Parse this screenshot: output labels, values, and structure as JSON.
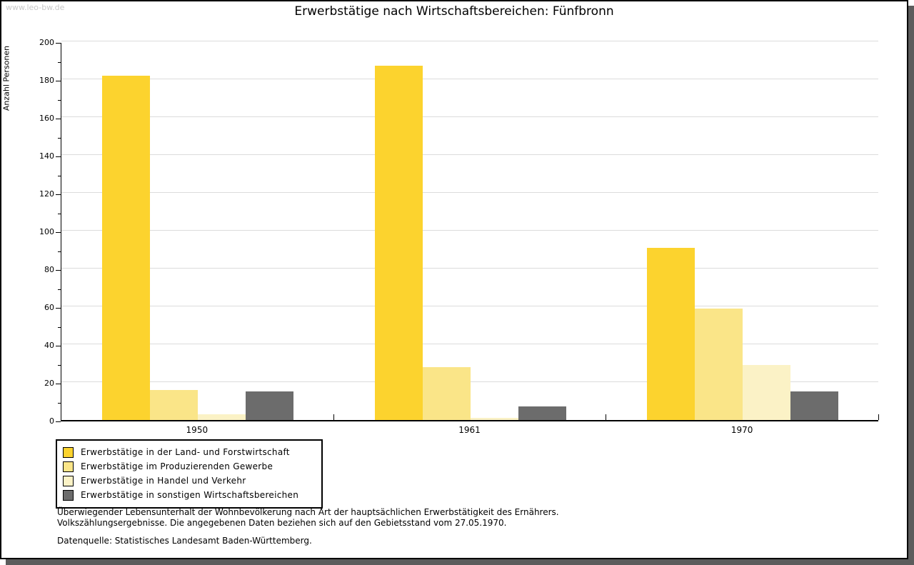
{
  "page": {
    "watermark": "www.leo-bw.de"
  },
  "chart_data": {
    "type": "bar",
    "title": "Erwerbstätige nach Wirtschaftsbereichen: Fünfbronn",
    "xlabel": "",
    "ylabel": "Anzahl Personen",
    "categories": [
      "1950",
      "1961",
      "1970"
    ],
    "series": [
      {
        "name": "Erwerbstätige in der Land- und Forstwirtschaft",
        "color": "#FCD32E",
        "values": [
          182,
          187,
          91
        ]
      },
      {
        "name": "Erwerbstätige im Produzierenden Gewerbe",
        "color": "#FAE588",
        "values": [
          16,
          28,
          59
        ]
      },
      {
        "name": "Erwerbstätige in Handel und Verkehr",
        "color": "#FBF2C6",
        "values": [
          3,
          1,
          29
        ]
      },
      {
        "name": "Erwerbstätige in sonstigen Wirtschaftsbereichen",
        "color": "#6C6C6C",
        "values": [
          15,
          7,
          15
        ]
      }
    ],
    "ylim": [
      0,
      200
    ],
    "ytick_step": 20,
    "minor_tick_step": 10,
    "grid": true,
    "legend_position": "bottom-left",
    "colors": {
      "gridline": "#dcdcdc",
      "axis": "#000000",
      "frame_shadow": "#5c5c5c",
      "watermark_text": "#c8c8c8"
    }
  },
  "footnotes": {
    "line1": "Überwiegender Lebensunterhalt der Wohnbevölkerung nach Art der hauptsächlichen Erwerbstätigkeit des Ernährers.",
    "line2": "Volkszählungsergebnisse. Die angegebenen Daten beziehen sich auf den Gebietsstand vom 27.05.1970.",
    "source": "Datenquelle: Statistisches Landesamt Baden-Württemberg."
  }
}
